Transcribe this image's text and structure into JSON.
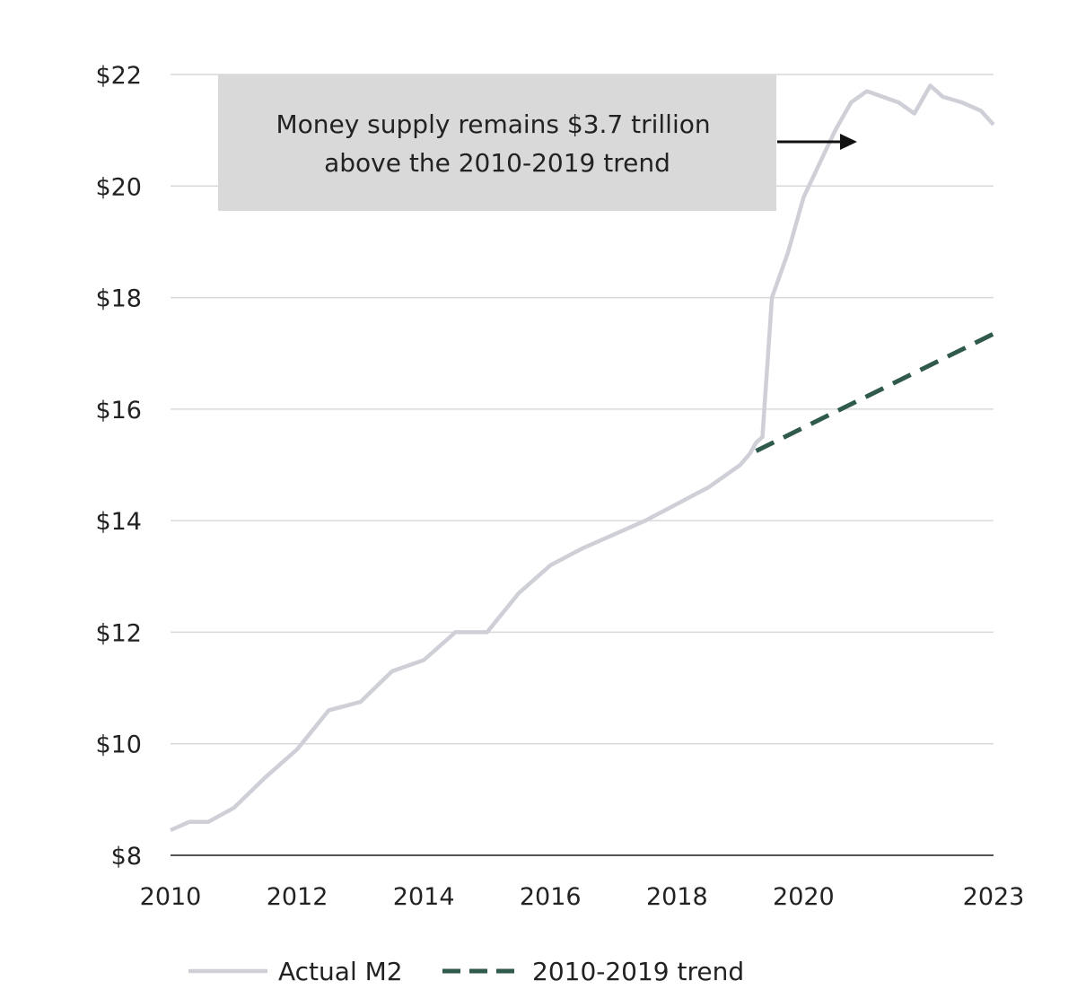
{
  "chart_data": {
    "type": "line",
    "title": "",
    "xlabel": "",
    "ylabel": "",
    "xlim": [
      2010,
      2023
    ],
    "ylim": [
      8,
      22
    ],
    "x_ticks": [
      "2010",
      "2012",
      "2014",
      "2016",
      "2018",
      "2020",
      "2023"
    ],
    "y_ticks": [
      "$8",
      "$10",
      "$12",
      "$14",
      "$16",
      "$18",
      "$20",
      "$22"
    ],
    "grid": true,
    "legend_placement": "bottom",
    "annotation": "Money supply remains $3.7 trillion above the 2010-2019 trend",
    "series": [
      {
        "name": "Actual M2",
        "style": "solid",
        "color": "#cfcfd8",
        "x": [
          2010.0,
          2010.3,
          2010.6,
          2011.0,
          2011.5,
          2012.0,
          2012.5,
          2013.0,
          2013.5,
          2014.0,
          2014.5,
          2015.0,
          2015.5,
          2016.0,
          2016.5,
          2017.0,
          2017.5,
          2018.0,
          2018.5,
          2019.0,
          2019.15,
          2019.25,
          2019.35,
          2019.5,
          2019.75,
          2020.0,
          2020.25,
          2020.5,
          2020.75,
          2021.0,
          2021.25,
          2021.5,
          2021.75,
          2022.0,
          2022.2,
          2022.5,
          2022.8,
          2023.0
        ],
        "values": [
          8.45,
          8.6,
          8.6,
          8.85,
          9.4,
          9.9,
          10.6,
          10.75,
          11.3,
          11.5,
          12.0,
          12.0,
          12.7,
          13.2,
          13.5,
          13.75,
          14.0,
          14.3,
          14.6,
          15.0,
          15.2,
          15.4,
          15.5,
          18.0,
          18.8,
          19.8,
          20.4,
          21.0,
          21.5,
          21.7,
          21.6,
          21.5,
          21.3,
          21.8,
          21.6,
          21.5,
          21.35,
          21.1
        ]
      },
      {
        "name": "2010-2019 trend",
        "style": "dashed",
        "color": "#2f5a4c",
        "x": [
          2019.25,
          2023.0
        ],
        "values": [
          15.25,
          17.35
        ]
      }
    ]
  }
}
